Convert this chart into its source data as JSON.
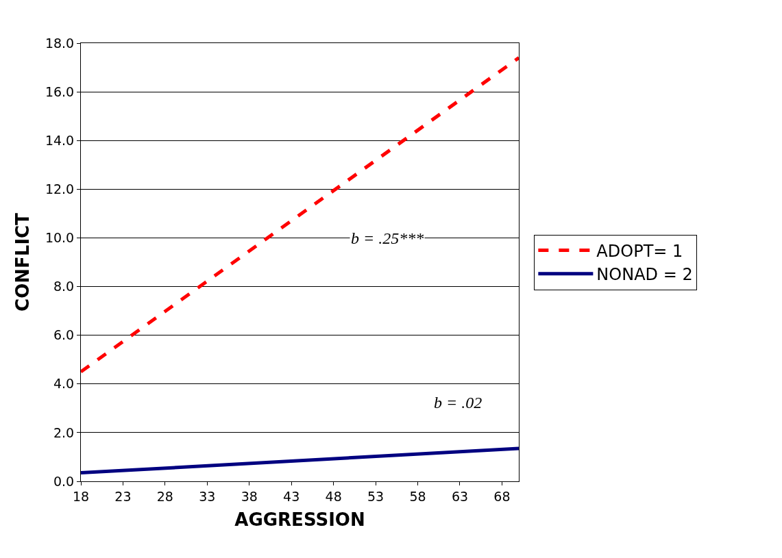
{
  "chart_data": {
    "type": "line",
    "xlabel": "AGGRESSION",
    "ylabel": "CONFLICT",
    "xlim": [
      18,
      70
    ],
    "xticks": [
      18,
      23,
      28,
      33,
      38,
      43,
      48,
      53,
      58,
      63,
      68
    ],
    "ylim": [
      0,
      18
    ],
    "yticks": [
      {
        "value": 0,
        "label": "0.0"
      },
      {
        "value": 2,
        "label": "2.0"
      },
      {
        "value": 4,
        "label": "4.0"
      },
      {
        "value": 6,
        "label": "6.0"
      },
      {
        "value": 8,
        "label": "8.0"
      },
      {
        "value": 10,
        "label": "10.0"
      },
      {
        "value": 12,
        "label": "12.0"
      },
      {
        "value": 14,
        "label": "14.0"
      },
      {
        "value": 16,
        "label": "16.0"
      },
      {
        "value": 18,
        "label": "18.0"
      }
    ],
    "grid": "y",
    "legend": "right",
    "marker": "none",
    "series": [
      {
        "name": "ADOPT= 1",
        "color": "#ff0000",
        "line_style": "dashed",
        "values": [
          4.5,
          17.4
        ]
      },
      {
        "name": "NONAD = 2",
        "color": "#000080",
        "line_style": "solid",
        "values": [
          0.35,
          1.35
        ]
      }
    ],
    "x": [
      18,
      70
    ],
    "annotations": [
      "b = .25***",
      "b = .02"
    ]
  }
}
